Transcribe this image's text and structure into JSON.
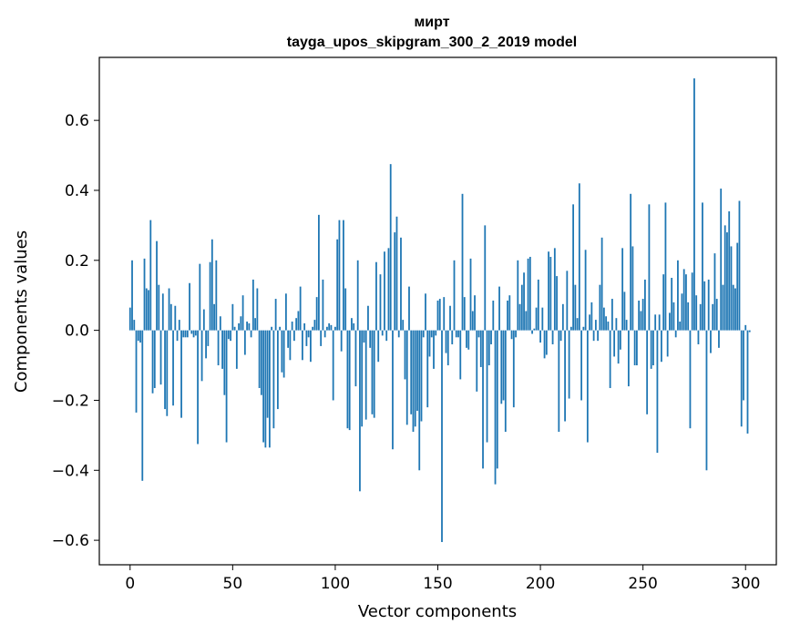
{
  "chart_data": {
    "type": "bar",
    "title": "мирт",
    "subtitle": "tayga_upos_skipgram_300_2_2019 model",
    "xlabel": "Vector components",
    "ylabel": "Components values",
    "xlim": [
      -15,
      315
    ],
    "ylim": [
      -0.67,
      0.78
    ],
    "xticks": [
      0,
      50,
      100,
      150,
      200,
      250,
      300
    ],
    "yticks": [
      -0.6,
      -0.4,
      -0.2,
      0.0,
      0.2,
      0.4,
      0.6
    ],
    "ytick_labels": [
      "−0.6",
      "−0.4",
      "−0.2",
      "0.0",
      "0.2",
      "0.4",
      "0.6"
    ],
    "bar_color": "#1f77b4",
    "grid": false,
    "values": [
      0.065,
      0.2,
      0.03,
      -0.235,
      -0.03,
      -0.035,
      -0.43,
      0.205,
      0.12,
      0.115,
      0.315,
      -0.18,
      -0.165,
      0.255,
      0.13,
      -0.155,
      0.105,
      -0.225,
      -0.245,
      0.12,
      0.075,
      -0.215,
      0.07,
      -0.03,
      0.03,
      -0.25,
      -0.02,
      -0.02,
      -0.02,
      0.135,
      -0.01,
      -0.02,
      -0.015,
      -0.325,
      0.19,
      -0.145,
      0.06,
      -0.08,
      -0.045,
      0.195,
      0.26,
      0.075,
      0.2,
      -0.1,
      0.04,
      -0.11,
      -0.185,
      -0.32,
      -0.025,
      -0.03,
      0.075,
      0.01,
      -0.11,
      0.02,
      0.04,
      0.1,
      -0.07,
      0.025,
      0.02,
      -0.02,
      0.145,
      0.035,
      0.12,
      -0.165,
      -0.185,
      -0.32,
      -0.335,
      -0.25,
      -0.335,
      0.01,
      -0.28,
      0.09,
      -0.225,
      0.01,
      -0.12,
      -0.135,
      0.105,
      -0.05,
      -0.085,
      0.025,
      -0.03,
      0.035,
      0.055,
      0.125,
      -0.085,
      0.02,
      -0.045,
      -0.02,
      -0.09,
      0.01,
      0.03,
      0.095,
      0.33,
      -0.045,
      0.145,
      -0.02,
      0.01,
      0.02,
      0.015,
      -0.2,
      0.01,
      0.26,
      0.315,
      -0.06,
      0.315,
      0.12,
      -0.28,
      -0.285,
      0.035,
      0.02,
      -0.16,
      0.2,
      -0.46,
      -0.275,
      -0.035,
      -0.255,
      0.07,
      -0.05,
      -0.24,
      -0.25,
      0.195,
      -0.09,
      0.16,
      -0.015,
      0.225,
      -0.03,
      0.235,
      0.475,
      -0.34,
      0.28,
      0.325,
      -0.02,
      0.265,
      0.03,
      -0.14,
      -0.27,
      0.125,
      -0.24,
      -0.29,
      -0.275,
      -0.23,
      -0.4,
      -0.26,
      -0.02,
      0.105,
      -0.22,
      -0.075,
      -0.02,
      -0.11,
      -0.015,
      0.085,
      0.09,
      -0.605,
      0.095,
      -0.065,
      -0.1,
      0.07,
      -0.04,
      0.2,
      -0.02,
      -0.02,
      -0.14,
      0.39,
      0.095,
      -0.05,
      -0.055,
      0.205,
      0.055,
      0.1,
      -0.175,
      -0.02,
      -0.105,
      -0.395,
      0.3,
      -0.32,
      -0.1,
      -0.04,
      0.085,
      -0.44,
      -0.395,
      0.125,
      -0.21,
      -0.2,
      -0.29,
      0.085,
      0.1,
      -0.025,
      -0.22,
      -0.02,
      0.2,
      0.075,
      0.13,
      0.165,
      0.055,
      0.205,
      0.21,
      -0.01,
      0.005,
      0.065,
      0.145,
      -0.035,
      0.065,
      -0.08,
      -0.07,
      0.225,
      0.21,
      -0.04,
      0.235,
      0.155,
      -0.29,
      -0.03,
      0.075,
      -0.26,
      0.17,
      -0.195,
      0.01,
      0.36,
      0.13,
      0.035,
      0.42,
      -0.2,
      0.01,
      0.23,
      -0.32,
      0.045,
      0.08,
      -0.03,
      0.03,
      -0.03,
      0.13,
      0.265,
      0.065,
      0.04,
      0.025,
      -0.165,
      0.09,
      -0.075,
      0.035,
      -0.095,
      -0.055,
      0.235,
      0.11,
      0.03,
      -0.16,
      0.39,
      0.24,
      -0.1,
      -0.1,
      0.085,
      0.055,
      0.09,
      0.145,
      -0.24,
      0.36,
      -0.11,
      -0.1,
      0.045,
      -0.35,
      0.045,
      -0.09,
      0.16,
      0.365,
      -0.075,
      0.05,
      0.15,
      0.08,
      -0.02,
      0.2,
      0.025,
      0.105,
      0.175,
      0.16,
      0.08,
      -0.28,
      0.165,
      0.72,
      0.1,
      -0.04,
      0.075,
      0.365,
      0.14,
      -0.4,
      0.145,
      -0.065,
      0.075,
      0.22,
      0.09,
      -0.05,
      0.405,
      0.13,
      0.3,
      0.28,
      0.34,
      0.24,
      0.13,
      0.12,
      0.25,
      0.37,
      -0.275,
      -0.2,
      0.015,
      -0.295,
      -0.005
    ]
  }
}
